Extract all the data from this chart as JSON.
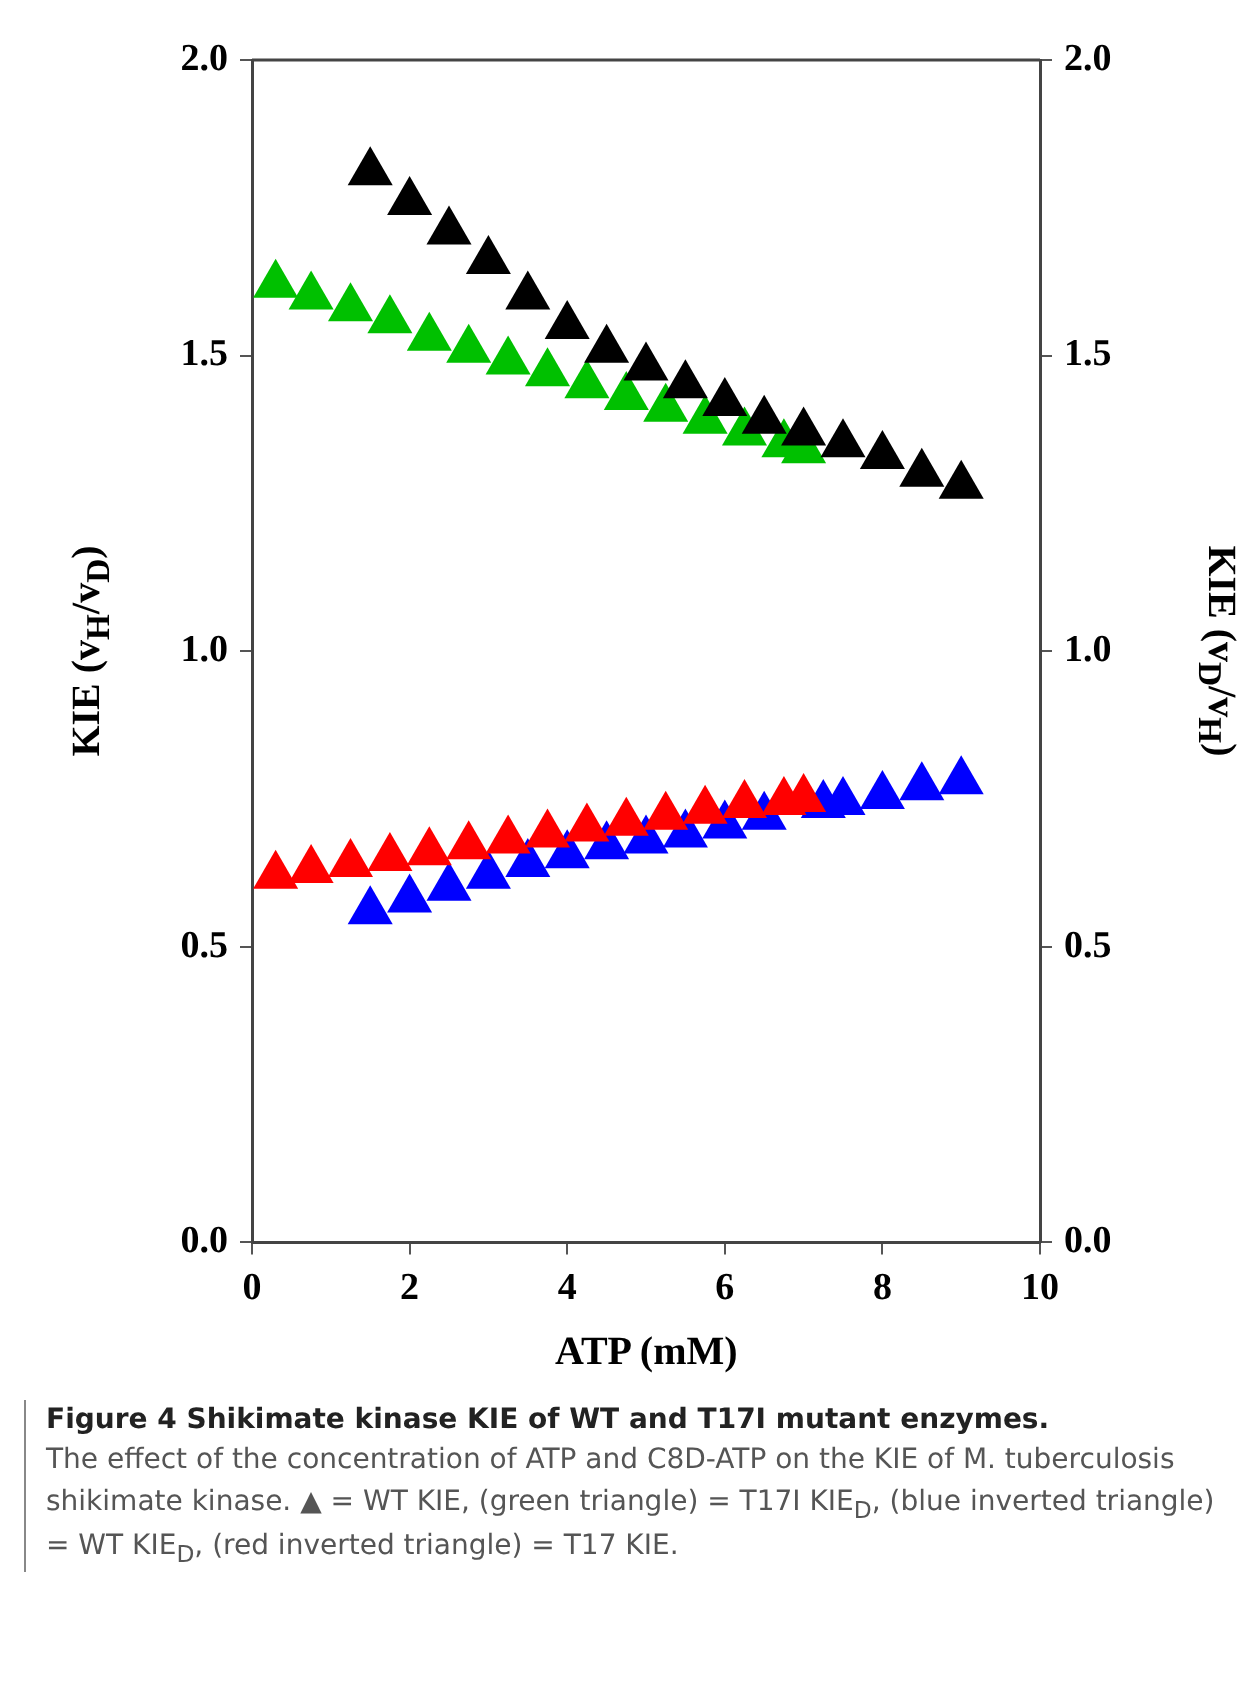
{
  "chart_data": {
    "type": "scatter",
    "xlabel": "ATP (mM)",
    "ylabel": "KIE (v$_{H}$/v$_{D}$)",
    "y2label": "KIE (v$_{D}$/v$_{H}$)",
    "xlim": [
      0,
      10
    ],
    "xticks": [
      0,
      2,
      4,
      6,
      8,
      10
    ],
    "ylim": [
      0,
      2
    ],
    "yticks": [
      {
        "value": 0,
        "label": "0.0"
      },
      {
        "value": 0.5,
        "label": "0.5"
      },
      {
        "value": 1,
        "label": "1.0"
      },
      {
        "value": 1.5,
        "label": "1.5"
      },
      {
        "value": 2,
        "label": "2.0"
      }
    ],
    "y2lim": [
      0,
      2
    ],
    "y2ticks": [
      {
        "value": 0,
        "label": "0.0"
      },
      {
        "value": 0.5,
        "label": "0.5"
      },
      {
        "value": 1,
        "label": "1.0"
      },
      {
        "value": 1.5,
        "label": "1.5"
      },
      {
        "value": 2,
        "label": "2.0"
      }
    ],
    "grid": false,
    "legend": false,
    "marker": "triangle",
    "series": [
      {
        "color": "#000000",
        "x": [
          1.5,
          2,
          2.5,
          3,
          3.5,
          4,
          4.5,
          5,
          5.5,
          6,
          6.5,
          7,
          7.5,
          8,
          8.5,
          9
        ],
        "values": [
          1.81,
          1.76,
          1.71,
          1.66,
          1.6,
          1.55,
          1.51,
          1.48,
          1.45,
          1.42,
          1.39,
          1.37,
          1.35,
          1.33,
          1.3,
          1.28
        ]
      },
      {
        "color": "#00c000",
        "x": [
          0.3,
          0.75,
          1.25,
          1.75,
          2.25,
          2.75,
          3.25,
          3.75,
          4.25,
          4.75,
          5.25,
          5.75,
          6.25,
          6.75,
          7
        ],
        "values": [
          1.62,
          1.6,
          1.58,
          1.56,
          1.53,
          1.51,
          1.49,
          1.47,
          1.45,
          1.43,
          1.41,
          1.39,
          1.37,
          1.35,
          1.34
        ]
      },
      {
        "color": "#ff0000",
        "x": [
          0.3,
          0.75,
          1.25,
          1.75,
          2.25,
          2.75,
          3.25,
          3.75,
          4.25,
          4.75,
          5.25,
          5.75,
          6.25,
          6.75,
          7
        ],
        "values": [
          0.62,
          0.63,
          0.64,
          0.65,
          0.66,
          0.67,
          0.68,
          0.69,
          0.7,
          0.71,
          0.72,
          0.73,
          0.74,
          0.745,
          0.75
        ]
      },
      {
        "color": "#0000ff",
        "x": [
          1.5,
          2,
          2.5,
          3,
          3.5,
          4,
          4.5,
          5,
          5.5,
          6,
          6.5,
          7.25,
          7.5,
          8,
          8.5,
          9
        ],
        "values": [
          0.56,
          0.58,
          0.6,
          0.62,
          0.64,
          0.655,
          0.67,
          0.68,
          0.69,
          0.705,
          0.72,
          0.74,
          0.745,
          0.755,
          0.77,
          0.78
        ]
      }
    ],
    "annotations": [
      "Figure 4 Shikimate kinase KIE of WT and T17I mutant enzymes.",
      "The effect of the concentration of ATP and C8D-ATP on the KIE of M. tuberculosis shikimate kinase. ▲ = WT KIE, (green triangle) = T17I KIE$_{D}$, (blue inverted triangle) = WT KIE$_{D}$, (red inverted triangle) = T17 KIE."
    ]
  }
}
